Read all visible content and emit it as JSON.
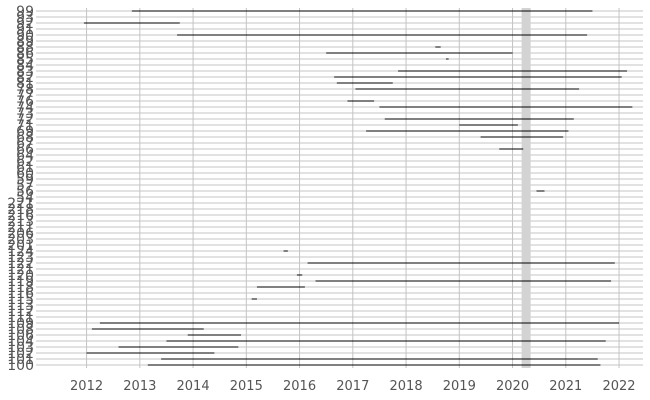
{
  "chart_data": {
    "type": "timeline",
    "title": "",
    "xlabel": "",
    "ylabel": "",
    "x_ticks": [
      "2012",
      "2013",
      "2014",
      "2015",
      "2016",
      "2017",
      "2018",
      "2019",
      "2020",
      "2021",
      "2022"
    ],
    "x_range": [
      2011.05,
      2022.45
    ],
    "y_labels": [
      "100",
      "101",
      "102",
      "103",
      "104",
      "106",
      "108",
      "109",
      "111",
      "112",
      "113",
      "115",
      "116",
      "118",
      "119",
      "120",
      "121",
      "122",
      "123",
      "124",
      "201",
      "203",
      "206",
      "211",
      "213",
      "216",
      "218",
      "221",
      "54",
      "56",
      "57",
      "59",
      "60",
      "61",
      "62",
      "64",
      "66",
      "67",
      "68",
      "69",
      "71",
      "72",
      "73",
      "74",
      "76",
      "77",
      "78",
      "81",
      "82",
      "83",
      "84",
      "85",
      "86",
      "88",
      "89",
      "90",
      "91",
      "92",
      "93",
      "99"
    ],
    "shaded_period": [
      2020.17,
      2020.34
    ],
    "intervals": [
      {
        "row": 0,
        "start": 2013.15,
        "end": 2021.65
      },
      {
        "row": 1,
        "start": 2013.4,
        "end": 2021.6
      },
      {
        "row": 2,
        "start": 2012.0,
        "end": 2014.4
      },
      {
        "row": 3,
        "start": 2012.6,
        "end": 2014.85
      },
      {
        "row": 4,
        "start": 2013.5,
        "end": 2021.75
      },
      {
        "row": 5,
        "start": 2013.9,
        "end": 2014.9
      },
      {
        "row": 6,
        "start": 2012.1,
        "end": 2014.2
      },
      {
        "row": 7,
        "start": 2012.25,
        "end": 2022.0
      },
      {
        "row": 11,
        "start": 2015.1,
        "end": 2015.2
      },
      {
        "row": 13,
        "start": 2015.2,
        "end": 2016.1
      },
      {
        "row": 14,
        "start": 2016.3,
        "end": 2021.85
      },
      {
        "row": 15,
        "start": 2015.95,
        "end": 2016.05
      },
      {
        "row": 17,
        "start": 2016.15,
        "end": 2021.92
      },
      {
        "row": 19,
        "start": 2015.7,
        "end": 2015.78
      },
      {
        "row": 29,
        "start": 2020.45,
        "end": 2020.6
      },
      {
        "row": 36,
        "start": 2019.75,
        "end": 2020.2
      },
      {
        "row": 38,
        "start": 2019.4,
        "end": 2020.95
      },
      {
        "row": 39,
        "start": 2017.25,
        "end": 2021.05
      },
      {
        "row": 40,
        "start": 2019.0,
        "end": 2020.1
      },
      {
        "row": 41,
        "start": 2017.6,
        "end": 2021.15
      },
      {
        "row": 43,
        "start": 2017.5,
        "end": 2022.25
      },
      {
        "row": 44,
        "start": 2016.9,
        "end": 2017.4
      },
      {
        "row": 46,
        "start": 2017.05,
        "end": 2021.25
      },
      {
        "row": 47,
        "start": 2016.7,
        "end": 2017.75
      },
      {
        "row": 48,
        "start": 2016.65,
        "end": 2022.05
      },
      {
        "row": 49,
        "start": 2017.85,
        "end": 2022.15
      },
      {
        "row": 51,
        "start": 2018.75,
        "end": 2018.8
      },
      {
        "row": 52,
        "start": 2016.5,
        "end": 2020.0
      },
      {
        "row": 53,
        "start": 2018.55,
        "end": 2018.65
      },
      {
        "row": 55,
        "start": 2013.7,
        "end": 2021.4
      },
      {
        "row": 57,
        "start": 2011.95,
        "end": 2013.75
      },
      {
        "row": 59,
        "start": 2012.85,
        "end": 2021.5
      }
    ],
    "grid": true,
    "colors": {
      "interval": "#000000",
      "shaded": "#d3d3d3",
      "grid": "#c4c4c4",
      "tick_label": "#555555",
      "background": "#ffffff"
    }
  }
}
